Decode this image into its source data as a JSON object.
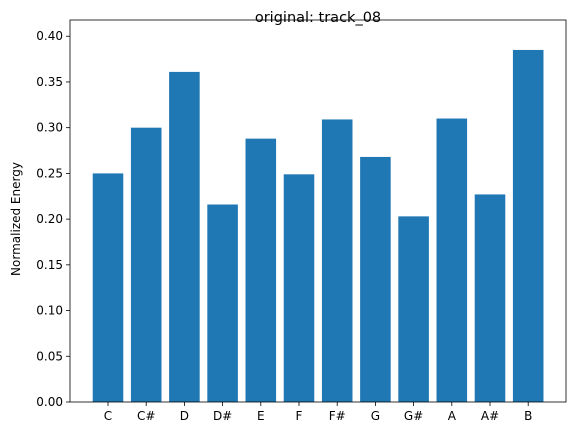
{
  "chart_data": {
    "type": "bar",
    "title": "original: track_08",
    "xlabel": "",
    "ylabel": "Normalized Energy",
    "categories": [
      "C",
      "C#",
      "D",
      "D#",
      "E",
      "F",
      "F#",
      "G",
      "G#",
      "A",
      "A#",
      "B"
    ],
    "values": [
      0.25,
      0.3,
      0.361,
      0.216,
      0.288,
      0.249,
      0.309,
      0.268,
      0.203,
      0.31,
      0.227,
      0.385
    ],
    "ylim": [
      0,
      0.4
    ],
    "yticks": [
      0.0,
      0.05,
      0.1,
      0.15,
      0.2,
      0.25,
      0.3,
      0.35,
      0.4
    ],
    "bar_color": "#1f77b4",
    "grid": false,
    "legend": "none"
  }
}
